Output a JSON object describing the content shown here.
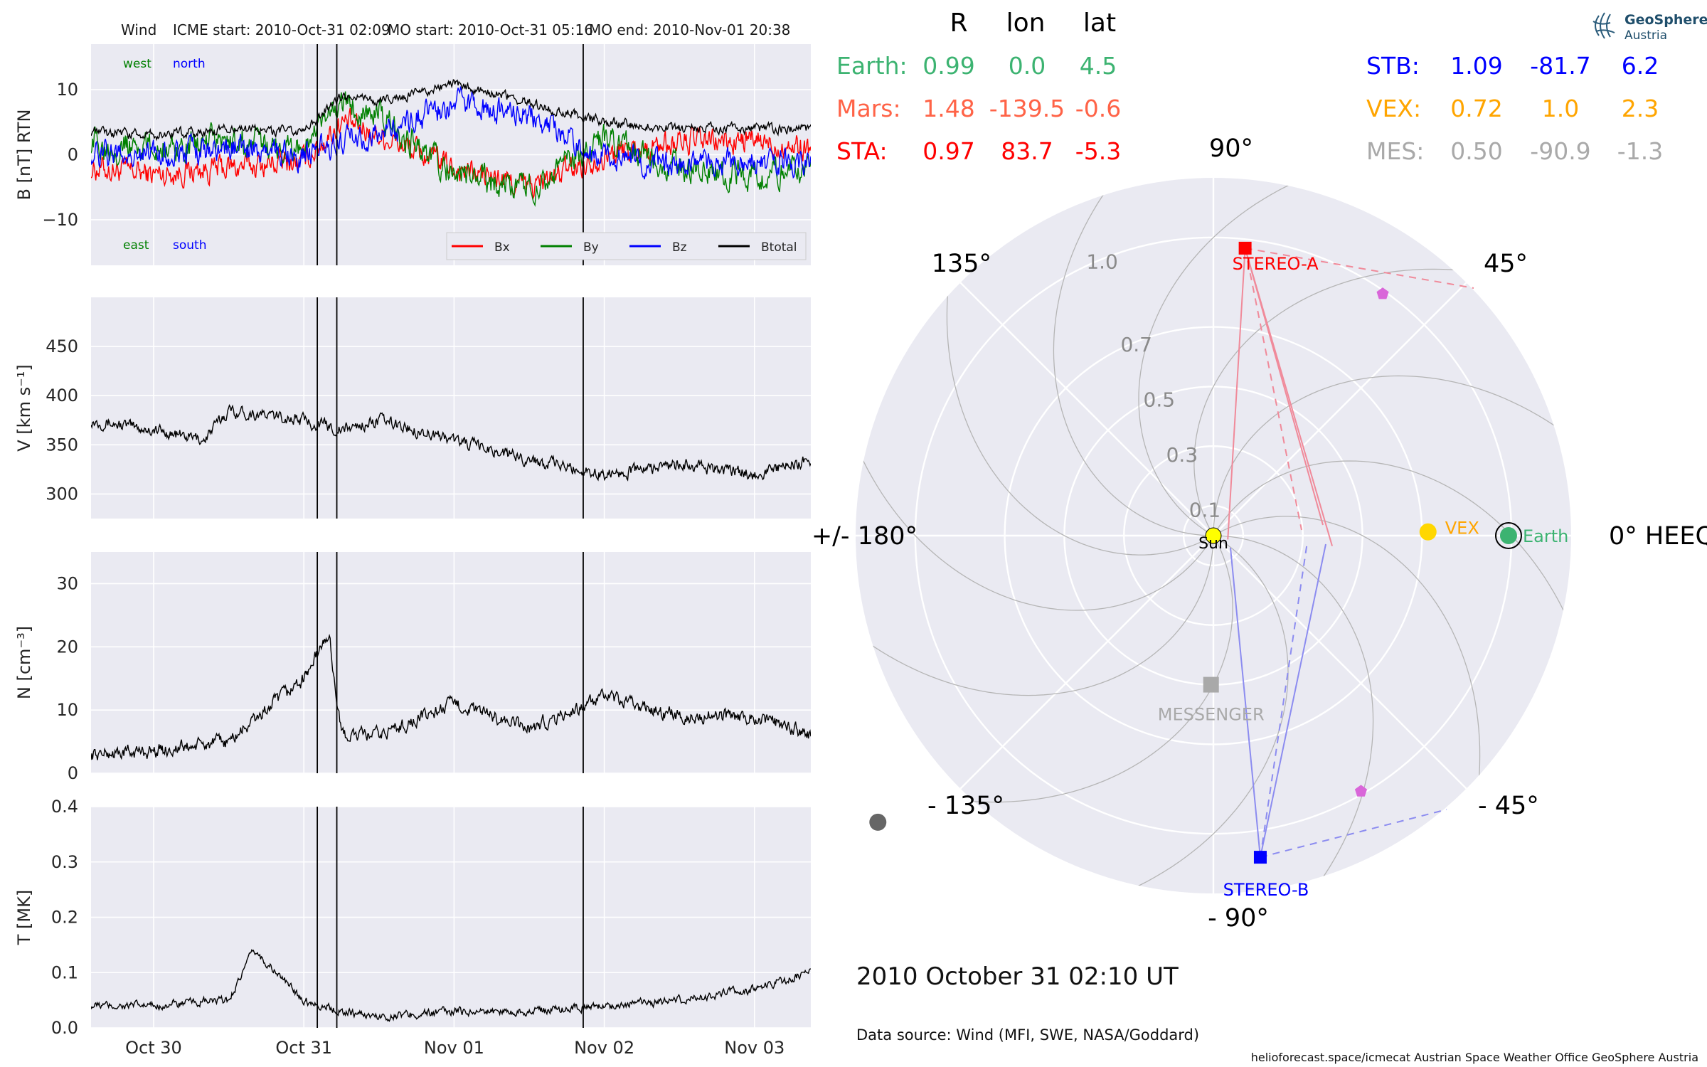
{
  "title": {
    "spacecraft": "Wind",
    "icme": "ICME start: 2010-Oct-31 02:09",
    "mo_start": "MO start: 2010-Oct-31 05:16",
    "mo_end": "MO end: 2010-Nov-01 20:38"
  },
  "logo": {
    "line1": "GeoSphere",
    "line2": "Austria"
  },
  "position_table": {
    "headers": [
      "R",
      "lon",
      "lat"
    ],
    "left": [
      {
        "name": "Earth:",
        "R": "0.99",
        "lon": "0.0",
        "lat": "4.5",
        "color": "#3cb371"
      },
      {
        "name": "Mars:",
        "R": "1.48",
        "lon": "-139.5",
        "lat": "-0.6",
        "color": "#ff6347"
      },
      {
        "name": "STA:",
        "R": "0.97",
        "lon": "83.7",
        "lat": "-5.3",
        "color": "#ff0000"
      }
    ],
    "right": [
      {
        "name": "STB:",
        "R": "1.09",
        "lon": "-81.7",
        "lat": "6.2",
        "color": "#0000ff"
      },
      {
        "name": "VEX:",
        "R": "0.72",
        "lon": "1.0",
        "lat": "2.3",
        "color": "#ffa500"
      },
      {
        "name": "MES:",
        "R": "0.50",
        "lon": "-90.9",
        "lat": "-1.3",
        "color": "#a9a9a9"
      }
    ]
  },
  "footer": {
    "datetime": "2010 October 31  02:10 UT",
    "source": "Data source: Wind (MFI, SWE, NASA/Goddard)",
    "credits": "helioforecast.space/icmecat   Austrian Space Weather Office   GeoSphere Austria"
  },
  "chart_data": [
    {
      "type": "line",
      "panel": "magnetic-field",
      "ylabel": "B [nT] RTN",
      "ylim": [
        -17,
        17
      ],
      "yticks": [
        -10,
        0,
        10
      ],
      "x_range_days": [
        "2010-10-29 14:00",
        "2010-11-03 09:00"
      ],
      "xticks": [
        "Oct 30",
        "Oct 31",
        "Nov 01",
        "Nov 02",
        "Nov 03"
      ],
      "event_lines": [
        "2010-10-31 02:09",
        "2010-10-31 05:16",
        "2010-11-01 20:38"
      ],
      "annotations": {
        "west": "west",
        "north": "north",
        "east": "east",
        "south": "south"
      },
      "legend_location": "lower-right",
      "series": [
        {
          "name": "Bx",
          "color": "#ff0000",
          "x": [
            "Oct 29 14:00",
            "Oct 30 00:00",
            "Oct 30 12:00",
            "Oct 31 00:00",
            "Oct 31 06:00",
            "Oct 31 12:00",
            "Nov 01 00:00",
            "Nov 01 12:00",
            "Nov 02 00:00",
            "Nov 02 12:00",
            "Nov 03 00:00",
            "Nov 03 09:00"
          ],
          "values": [
            -2,
            -3,
            -2,
            -1,
            5,
            3,
            -2,
            -5,
            0,
            2,
            2,
            1
          ]
        },
        {
          "name": "By",
          "color": "#008000",
          "x": [
            "Oct 29 14:00",
            "Oct 30 00:00",
            "Oct 30 12:00",
            "Oct 31 00:00",
            "Oct 31 06:00",
            "Oct 31 12:00",
            "Nov 01 00:00",
            "Nov 01 12:00",
            "Nov 02 00:00",
            "Nov 02 12:00",
            "Nov 03 00:00",
            "Nov 03 09:00"
          ],
          "values": [
            2,
            1,
            2,
            1,
            8,
            6,
            -3,
            -5,
            2,
            -2,
            -3,
            -2
          ]
        },
        {
          "name": "Bz",
          "color": "#0000ff",
          "x": [
            "Oct 29 14:00",
            "Oct 30 00:00",
            "Oct 30 12:00",
            "Oct 31 00:00",
            "Oct 31 06:00",
            "Oct 31 12:00",
            "Nov 01 00:00",
            "Nov 01 12:00",
            "Nov 02 00:00",
            "Nov 02 12:00",
            "Nov 03 00:00",
            "Nov 03 09:00"
          ],
          "values": [
            0,
            0,
            1,
            0,
            2,
            3,
            8,
            6,
            0,
            -2,
            -1,
            -1
          ]
        },
        {
          "name": "Btotal",
          "color": "#000000",
          "x": [
            "Oct 29 14:00",
            "Oct 30 00:00",
            "Oct 30 12:00",
            "Oct 31 00:00",
            "Oct 31 06:00",
            "Oct 31 12:00",
            "Nov 01 00:00",
            "Nov 01 12:00",
            "Nov 02 00:00",
            "Nov 02 12:00",
            "Nov 03 00:00",
            "Nov 03 09:00"
          ],
          "values": [
            3.5,
            3,
            4,
            3.5,
            9,
            8,
            11,
            8,
            5,
            4,
            4,
            4
          ]
        }
      ]
    },
    {
      "type": "line",
      "panel": "speed",
      "ylabel": "V [km s⁻¹]",
      "ylim": [
        275,
        500
      ],
      "yticks": [
        300,
        350,
        400,
        450
      ],
      "series": [
        {
          "color": "#000000",
          "x": [
            "Oct 29 14:00",
            "Oct 30 00:00",
            "Oct 30 08:00",
            "Oct 30 12:00",
            "Oct 31 00:00",
            "Oct 31 06:00",
            "Oct 31 12:00",
            "Nov 01 00:00",
            "Nov 01 12:00",
            "Nov 02 00:00",
            "Nov 02 12:00",
            "Nov 03 00:00",
            "Nov 03 09:00"
          ],
          "values": [
            375,
            365,
            355,
            385,
            375,
            365,
            375,
            355,
            335,
            320,
            330,
            320,
            335
          ]
        }
      ]
    },
    {
      "type": "line",
      "panel": "density",
      "ylabel": "N [cm⁻³]",
      "ylim": [
        0,
        35
      ],
      "yticks": [
        0,
        10,
        20,
        30
      ],
      "series": [
        {
          "color": "#000000",
          "x": [
            "Oct 29 14:00",
            "Oct 30 00:00",
            "Oct 30 12:00",
            "Oct 30 18:00",
            "Oct 31 00:00",
            "Oct 31 04:00",
            "Oct 31 06:00",
            "Oct 31 12:00",
            "Nov 01 00:00",
            "Nov 01 12:00",
            "Nov 02 00:00",
            "Nov 02 12:00",
            "Nov 03 00:00",
            "Nov 03 09:00"
          ],
          "values": [
            3,
            3.5,
            5,
            10,
            15,
            22,
            6,
            6,
            11,
            7,
            12,
            9,
            9,
            6
          ]
        }
      ]
    },
    {
      "type": "line",
      "panel": "temperature",
      "ylabel": "T [MK]",
      "ylim": [
        0,
        0.4
      ],
      "yticks": [
        0.0,
        0.1,
        0.2,
        0.3,
        0.4
      ],
      "series": [
        {
          "color": "#000000",
          "x": [
            "Oct 29 14:00",
            "Oct 30 00:00",
            "Oct 30 12:00",
            "Oct 30 16:00",
            "Oct 31 00:00",
            "Oct 31 06:00",
            "Oct 31 12:00",
            "Nov 01 00:00",
            "Nov 01 12:00",
            "Nov 02 00:00",
            "Nov 02 12:00",
            "Nov 03 00:00",
            "Nov 03 09:00"
          ],
          "values": [
            0.04,
            0.04,
            0.05,
            0.14,
            0.05,
            0.03,
            0.02,
            0.03,
            0.03,
            0.04,
            0.05,
            0.07,
            0.1
          ]
        }
      ]
    },
    {
      "type": "scatter",
      "panel": "polar-positions",
      "frame": "HEEQ",
      "angle_labels": {
        "a0": "0° HEEQ",
        "a45": "45°",
        "a90": "90°",
        "a135": "135°",
        "a180": "+/- 180°",
        "am135": "- 135°",
        "am90": "- 90°",
        "am45": "- 45°"
      },
      "radial_labels": [
        "0.1",
        "0.3",
        "0.5",
        "0.7",
        "1.0"
      ],
      "objects": [
        {
          "name": "Sun",
          "r": 0.0,
          "lon_deg": 0.0,
          "color": "#ffff00"
        },
        {
          "name": "Earth",
          "r": 0.99,
          "lon_deg": 0.0,
          "color": "#3cb371"
        },
        {
          "name": "VEX",
          "r": 0.72,
          "lon_deg": 1.0,
          "color": "#ffd700"
        },
        {
          "name": "STEREO-A",
          "r": 0.97,
          "lon_deg": 83.7,
          "color": "#ff0000"
        },
        {
          "name": "STEREO-B",
          "r": 1.09,
          "lon_deg": -81.7,
          "color": "#0000ff"
        },
        {
          "name": "MESSENGER",
          "r": 0.5,
          "lon_deg": -90.9,
          "color": "#a9a9a9"
        },
        {
          "r": 1.48,
          "lon_deg": -139.5,
          "color": "#666666"
        },
        {
          "r": 0.99,
          "lon_deg": 55,
          "color": "#d966d9"
        },
        {
          "r": 0.99,
          "lon_deg": -60,
          "color": "#d966d9"
        }
      ]
    }
  ]
}
